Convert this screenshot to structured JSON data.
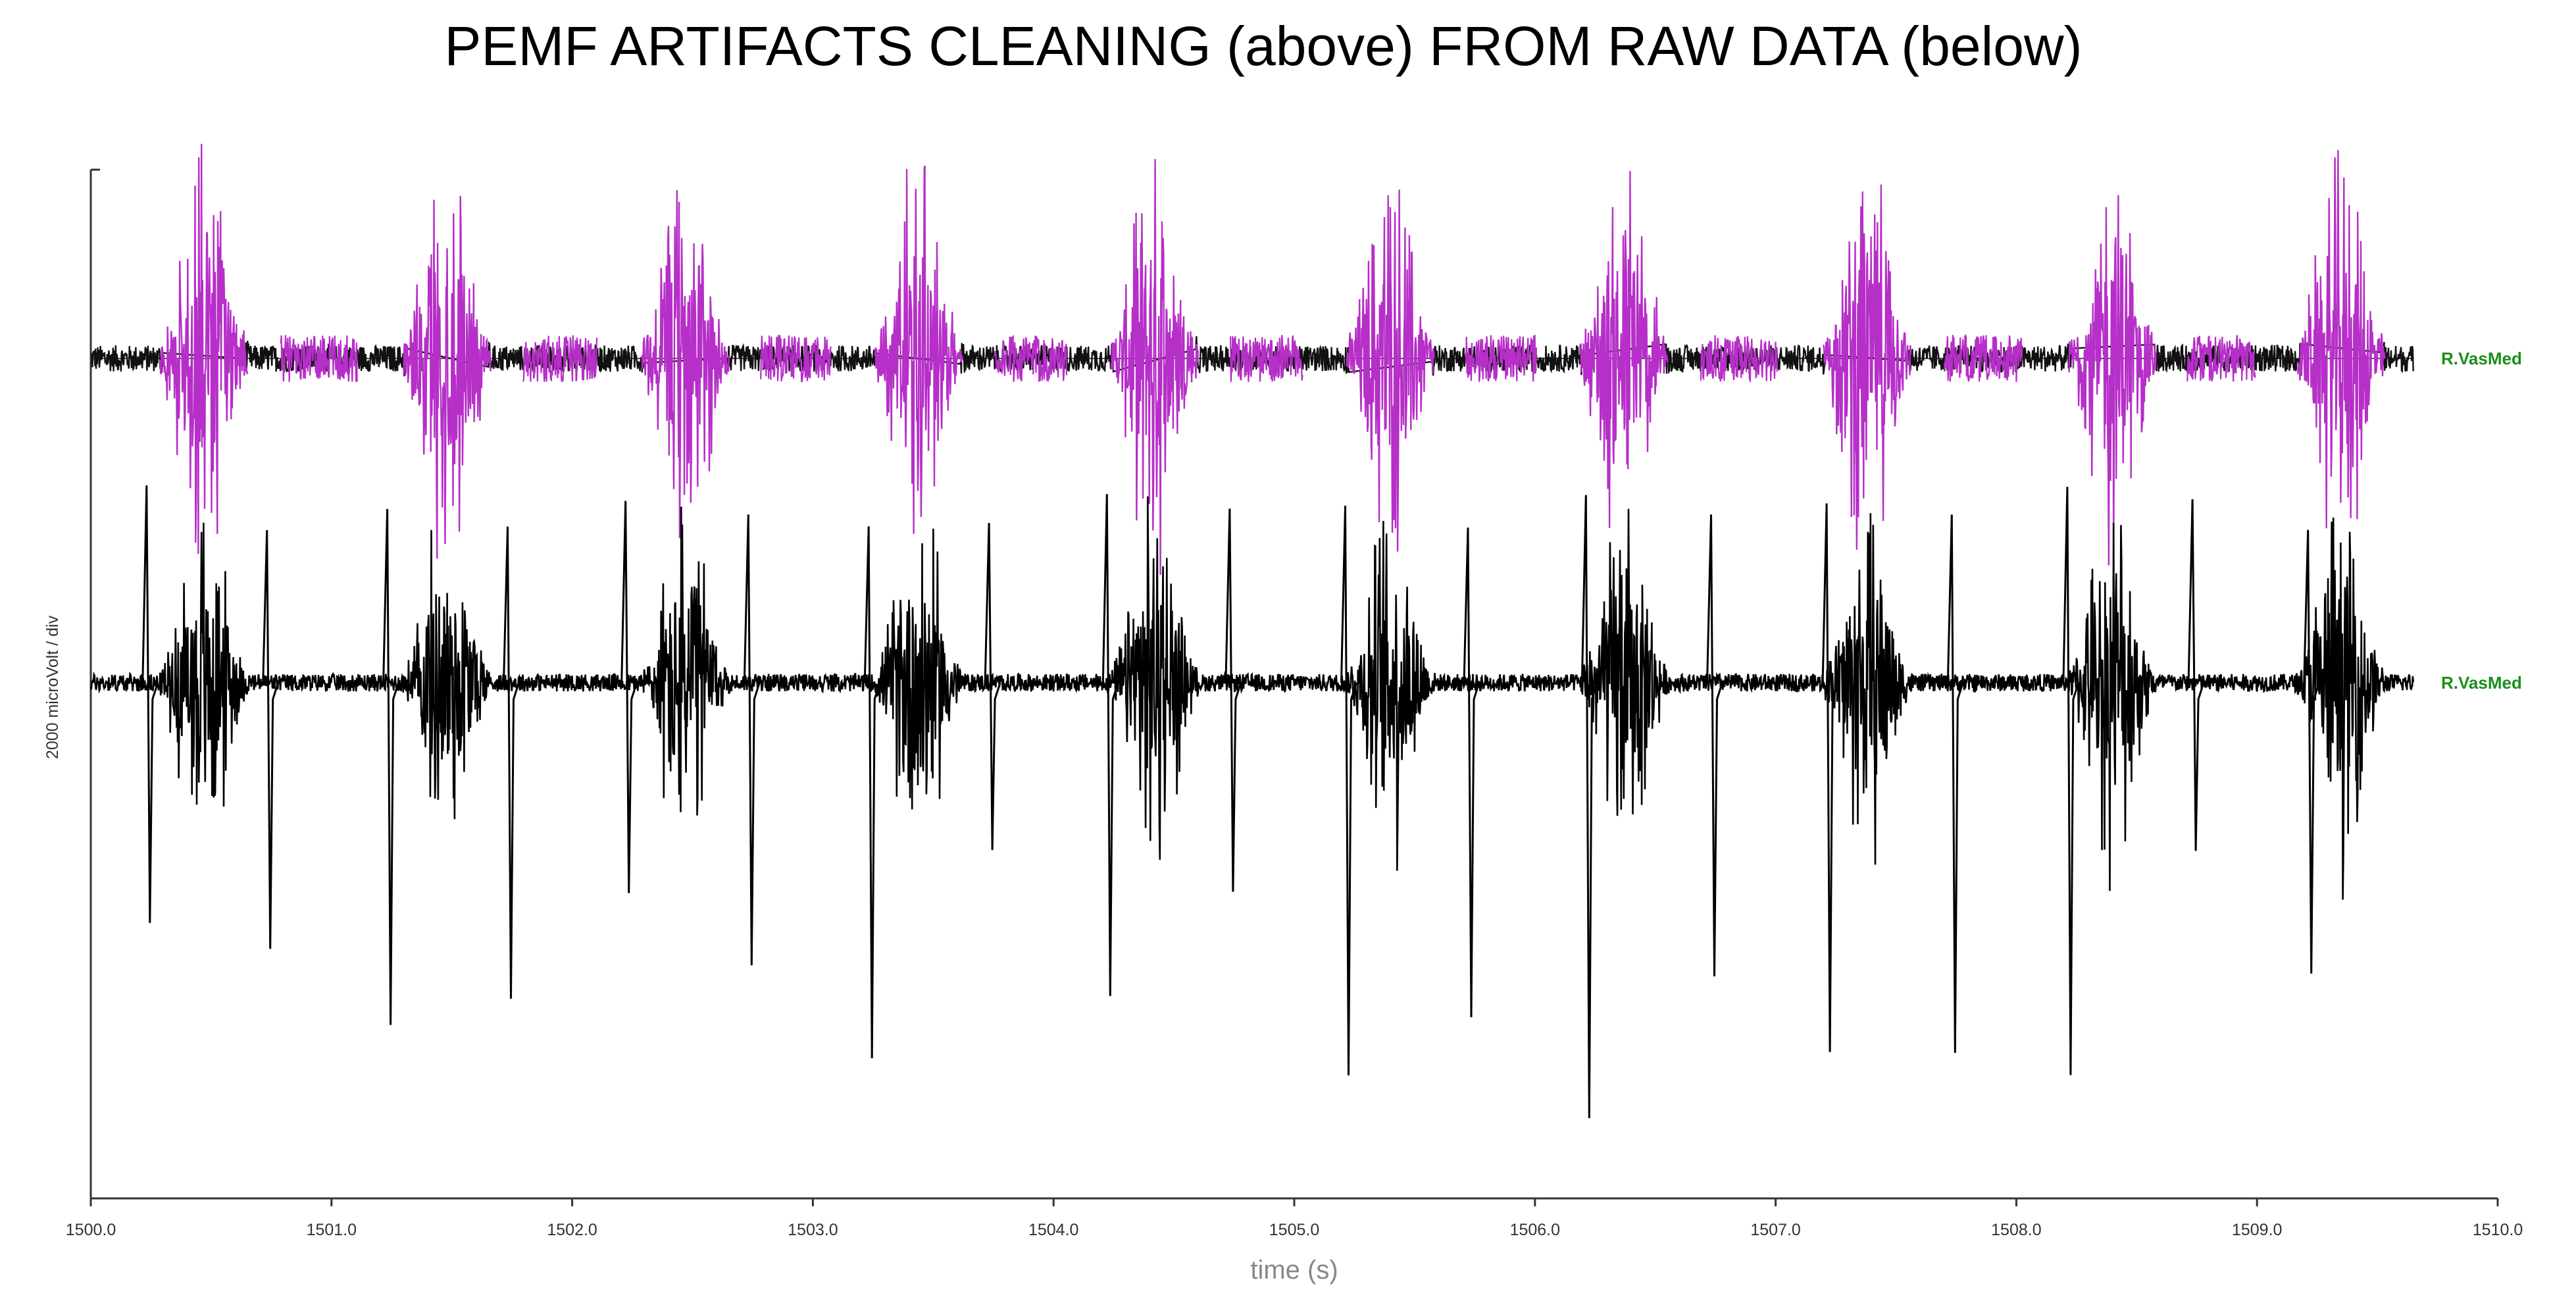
{
  "chart_data": {
    "type": "line",
    "title": "PEMF ARTIFACTS CLEANING (above) FROM RAW DATA (below)",
    "xlabel": "time (s)",
    "ylabel": "2000 microVolt / div",
    "xlim": [
      1500.0,
      1510.0
    ],
    "x_ticks": [
      "1500.0",
      "1501.0",
      "1502.0",
      "1503.0",
      "1504.0",
      "1505.0",
      "1506.0",
      "1507.0",
      "1508.0",
      "1509.0",
      "1510.0"
    ],
    "grid": false,
    "data_end_s": 1509.65,
    "series": [
      {
        "name": "R.VasMed",
        "role": "cleaned",
        "color": "#b62fc8",
        "color_quiet": "#111111",
        "burst_centers_s": [
          1500.47,
          1501.48,
          1502.47,
          1503.44,
          1504.42,
          1505.4,
          1506.37,
          1507.38,
          1508.4,
          1509.35
        ],
        "burst_halfwidth_s": 0.2,
        "burst_peak_uV": 2600,
        "baseline_uV": 0
      },
      {
        "name": "R.VasMed",
        "role": "raw",
        "color": "#000000",
        "burst_centers_s": [
          1500.47,
          1501.48,
          1502.47,
          1503.44,
          1504.42,
          1505.4,
          1506.37,
          1507.38,
          1508.4,
          1509.35
        ],
        "burst_halfwidth_s": 0.2,
        "burst_peak_uV": 2600,
        "artifact_times_s": [
          1500.24,
          1500.74,
          1501.24,
          1501.74,
          1502.23,
          1502.74,
          1503.24,
          1503.74,
          1504.23,
          1504.74,
          1505.22,
          1505.73,
          1506.22,
          1506.74,
          1507.22,
          1507.74,
          1508.22,
          1508.74,
          1509.22
        ],
        "artifact_pos_peak_uV": 2700,
        "artifact_neg_peak_uV": -6000
      }
    ],
    "channel_labels": [
      "R.VasMed",
      "R.VasMed"
    ],
    "channel_label_color": "#1a8f1a"
  }
}
